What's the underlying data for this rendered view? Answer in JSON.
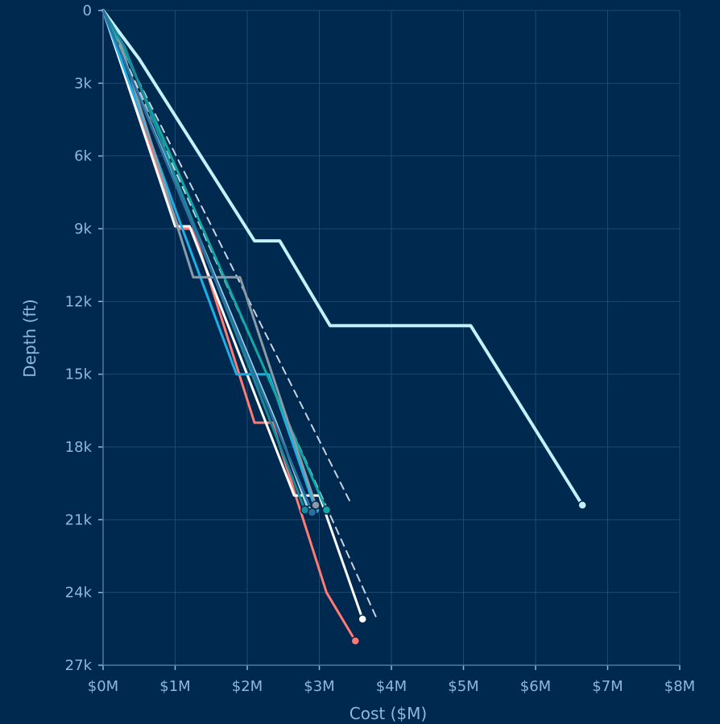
{
  "chart_data": {
    "type": "line",
    "title": "",
    "xlabel": "Cost ($M)",
    "ylabel": "Depth (ft)",
    "xlim": [
      0,
      8
    ],
    "ylim": [
      0,
      27000
    ],
    "y_inverted": true,
    "grid": true,
    "x_ticks": [
      {
        "v": 0,
        "label": "$0M"
      },
      {
        "v": 1,
        "label": "$1M"
      },
      {
        "v": 2,
        "label": "$2M"
      },
      {
        "v": 3,
        "label": "$3M"
      },
      {
        "v": 4,
        "label": "$4M"
      },
      {
        "v": 5,
        "label": "$5M"
      },
      {
        "v": 6,
        "label": "$6M"
      },
      {
        "v": 7,
        "label": "$7M"
      },
      {
        "v": 8,
        "label": "$8M"
      }
    ],
    "y_ticks": [
      {
        "v": 0,
        "label": "0"
      },
      {
        "v": 3000,
        "label": "3k"
      },
      {
        "v": 6000,
        "label": "6k"
      },
      {
        "v": 9000,
        "label": "9k"
      },
      {
        "v": 12000,
        "label": "12k"
      },
      {
        "v": 15000,
        "label": "15k"
      },
      {
        "v": 18000,
        "label": "18k"
      },
      {
        "v": 21000,
        "label": "21k"
      },
      {
        "v": 24000,
        "label": "24k"
      },
      {
        "v": 27000,
        "label": "27k"
      }
    ],
    "series": [
      {
        "color": "#c4f1fd",
        "width": 4,
        "dash": false,
        "end_marker": true,
        "points": [
          [
            0,
            0
          ],
          [
            0.5,
            2000
          ],
          [
            2.1,
            9500
          ],
          [
            2.45,
            9500
          ],
          [
            3.15,
            13000
          ],
          [
            5.1,
            13000
          ],
          [
            6.65,
            20400
          ]
        ]
      },
      {
        "color": "#ff7b73",
        "width": 3,
        "dash": false,
        "end_marker": true,
        "points": [
          [
            0,
            0
          ],
          [
            1.05,
            9000
          ],
          [
            1.25,
            9000
          ],
          [
            2.1,
            17000
          ],
          [
            2.35,
            17000
          ],
          [
            3.1,
            24000
          ],
          [
            3.5,
            26000
          ]
        ]
      },
      {
        "color": "#ffffff",
        "width": 3,
        "dash": false,
        "end_marker": true,
        "points": [
          [
            0,
            0
          ],
          [
            1.0,
            8900
          ],
          [
            1.2,
            8900
          ],
          [
            2.65,
            20000
          ],
          [
            3.0,
            20000
          ],
          [
            3.6,
            25100
          ]
        ]
      },
      {
        "color": "#c8d4df",
        "width": 2,
        "dash": true,
        "end_marker": false,
        "points": [
          [
            0,
            0
          ],
          [
            3.45,
            20400
          ]
        ]
      },
      {
        "color": "#c8d4df",
        "width": 2,
        "dash": true,
        "end_marker": false,
        "points": [
          [
            0,
            0
          ],
          [
            3.8,
            25100
          ]
        ]
      },
      {
        "color": "#1ab0e6",
        "width": 3,
        "dash": false,
        "end_marker": true,
        "points": [
          [
            0,
            0
          ],
          [
            1.1,
            9000
          ],
          [
            1.85,
            15000
          ],
          [
            2.3,
            15000
          ],
          [
            2.95,
            20600
          ]
        ]
      },
      {
        "color": "#10a8a4",
        "width": 3,
        "dash": false,
        "end_marker": true,
        "points": [
          [
            0,
            0
          ],
          [
            0.35,
            2000
          ],
          [
            3.1,
            20600
          ]
        ]
      },
      {
        "color": "#8a9ba8",
        "width": 3,
        "dash": false,
        "end_marker": true,
        "points": [
          [
            0,
            0
          ],
          [
            0.2,
            1000
          ],
          [
            1.25,
            11000
          ],
          [
            1.9,
            11000
          ],
          [
            2.95,
            20400
          ]
        ]
      },
      {
        "color": "#9fd8e6",
        "width": 3,
        "dash": false,
        "end_marker": true,
        "points": [
          [
            0,
            0
          ],
          [
            1.35,
            9500
          ],
          [
            2.4,
            17000
          ],
          [
            2.85,
            20600
          ]
        ]
      },
      {
        "color": "#1a8a9a",
        "width": 3,
        "dash": false,
        "end_marker": true,
        "points": [
          [
            0,
            0
          ],
          [
            0.3,
            1500
          ],
          [
            2.8,
            20600
          ]
        ]
      },
      {
        "color": "#2a6fa0",
        "width": 3,
        "dash": false,
        "end_marker": true,
        "points": [
          [
            0,
            0
          ],
          [
            2.9,
            20700
          ]
        ]
      }
    ]
  }
}
